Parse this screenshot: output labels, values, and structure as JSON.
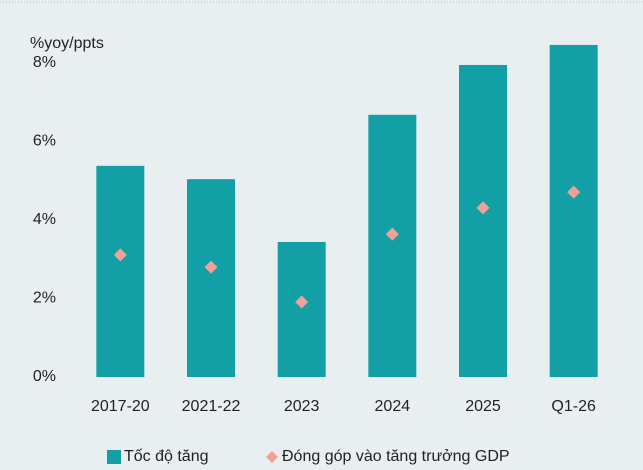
{
  "chart_data": {
    "type": "bar+scatter",
    "axis_label": "%yoy/ppts",
    "categories": [
      "2017-20",
      "2021-22",
      "2023",
      "2024",
      "2025",
      "Q1-26"
    ],
    "series": [
      {
        "name": "Tốc độ tăng",
        "type": "bar",
        "color": "#12a0a6",
        "values": [
          5.38,
          5.04,
          3.44,
          6.68,
          7.95,
          8.46
        ]
      },
      {
        "name": "Đóng góp vào tăng trưởng GDP",
        "type": "scatter",
        "color": "#f3a197",
        "values": [
          3.11,
          2.8,
          1.91,
          3.64,
          4.31,
          4.71
        ]
      }
    ],
    "ylim": [
      0,
      9
    ],
    "yticks": [
      {
        "value": 0,
        "label": "0%"
      },
      {
        "value": 2,
        "label": "2%"
      },
      {
        "value": 4,
        "label": "4%"
      },
      {
        "value": 6,
        "label": "6%"
      },
      {
        "value": 8,
        "label": "8%"
      }
    ],
    "grid": false,
    "legend": "bottom"
  }
}
